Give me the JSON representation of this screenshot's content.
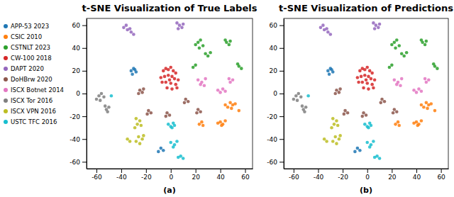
{
  "chart_data": [
    {
      "type": "scatter",
      "title": "t-SNE Visualization of True Labels",
      "x_label": "(a)",
      "xlim": [
        -68,
        66
      ],
      "ylim": [
        -66,
        66
      ],
      "xticks": [
        -60,
        -40,
        -20,
        0,
        20,
        40,
        60
      ],
      "yticks": [
        -60,
        -40,
        -20,
        0,
        20,
        40,
        60
      ],
      "legend": "left",
      "series": [
        {
          "name": "APP-53 2023",
          "color": "#1f77b4",
          "x": [
            -32,
            -30,
            -28,
            -31,
            -29,
            -8,
            -6,
            -10
          ],
          "values": [
            20,
            22,
            19,
            17,
            21,
            -48,
            -50,
            -51
          ]
        },
        {
          "name": "CSIC 2010",
          "color": "#ff7f0e",
          "x": [
            48,
            50,
            46,
            52,
            49,
            44,
            40,
            42,
            38,
            44,
            41,
            23,
            25,
            26,
            55
          ],
          "values": [
            -8,
            -10,
            -12,
            -9,
            -13,
            -10,
            -25,
            -27,
            -26,
            -24,
            -28,
            -27,
            -25,
            -28,
            -15
          ]
        },
        {
          "name": "CSTNLT 2023",
          "color": "#2ca02c",
          "x": [
            22,
            24,
            20,
            23,
            26,
            28,
            30,
            32,
            45,
            47,
            44,
            48,
            55,
            57,
            54,
            20,
            18
          ],
          "values": [
            45,
            47,
            43,
            40,
            42,
            35,
            33,
            36,
            45,
            43,
            47,
            46,
            24,
            22,
            26,
            25,
            23
          ]
        },
        {
          "name": "CW-100 2018",
          "color": "#d62728",
          "x": [
            -6,
            -4,
            -2,
            0,
            2,
            4,
            -5,
            -2,
            1,
            3,
            -7,
            -4,
            0,
            4,
            -3,
            1,
            5,
            -8,
            6,
            -1
          ],
          "values": [
            20,
            22,
            21,
            23,
            20,
            18,
            15,
            16,
            15,
            13,
            10,
            10,
            9,
            8,
            5,
            4,
            5,
            14,
            12,
            12
          ]
        },
        {
          "name": "DAPT 2020",
          "color": "#9467bd",
          "x": [
            -38,
            -35,
            -32,
            -30,
            -36,
            -33,
            5,
            7,
            9,
            6,
            10
          ],
          "values": [
            58,
            56,
            54,
            52,
            60,
            57,
            62,
            60,
            58,
            57,
            61
          ]
        },
        {
          "name": "DoHBrw 2020",
          "color": "#8c564b",
          "x": [
            -25,
            -23,
            -26,
            -22,
            -18,
            -16,
            -19,
            -3,
            -1,
            -4,
            12,
            14,
            11,
            22,
            24,
            21
          ],
          "values": [
            3,
            1,
            0,
            4,
            -15,
            -17,
            -18,
            -17,
            -19,
            -20,
            -5,
            -7,
            -8,
            -14,
            -16,
            -17
          ]
        },
        {
          "name": "ISCX Botnet 2014",
          "color": "#e377c2",
          "x": [
            22,
            25,
            28,
            24,
            27,
            38,
            40,
            42,
            44,
            48,
            50,
            47
          ],
          "values": [
            12,
            10,
            13,
            8,
            7,
            3,
            1,
            4,
            2,
            10,
            12,
            13
          ]
        },
        {
          "name": "ISCX Tor 2016",
          "color": "#7f7f7f",
          "x": [
            -58,
            -56,
            -54,
            -60,
            -57,
            -52,
            -50,
            -53,
            -51
          ],
          "values": [
            -2,
            0,
            -3,
            -5,
            -6,
            -14,
            -12,
            -11,
            -16
          ]
        },
        {
          "name": "ISCX VPN 2016",
          "color": "#bcbd22",
          "x": [
            -28,
            -25,
            -27,
            -24,
            -29,
            -26,
            -23,
            -28,
            -25,
            -22,
            -35,
            -33
          ],
          "values": [
            -22,
            -24,
            -27,
            -28,
            -30,
            -38,
            -40,
            -42,
            -44,
            -37,
            -40,
            -42
          ]
        },
        {
          "name": "USTC TFC 2016",
          "color": "#17becf",
          "x": [
            -2,
            0,
            2,
            1,
            3,
            0,
            3,
            5,
            2,
            8,
            10,
            6,
            -48
          ],
          "values": [
            -27,
            -29,
            -26,
            -30,
            -28,
            -43,
            -45,
            -42,
            -47,
            -55,
            -57,
            -56,
            -2
          ]
        }
      ]
    },
    {
      "type": "scatter",
      "title": "t-SNE Visualization of Predictions",
      "x_label": "(b)",
      "xlim": [
        -68,
        66
      ],
      "ylim": [
        -66,
        66
      ],
      "xticks": [
        -60,
        -40,
        -20,
        0,
        20,
        40,
        60
      ],
      "yticks": [
        -60,
        -40,
        -20,
        0,
        20,
        40,
        60
      ],
      "series": [
        {
          "name": "APP-53 2023",
          "color": "#1f77b4",
          "x": [
            -32,
            -30,
            -28,
            -31,
            -29,
            -8,
            -6,
            -10
          ],
          "values": [
            20,
            22,
            19,
            17,
            21,
            -48,
            -50,
            -51
          ]
        },
        {
          "name": "CSIC 2010",
          "color": "#ff7f0e",
          "x": [
            48,
            50,
            46,
            52,
            49,
            44,
            40,
            42,
            38,
            44,
            41,
            23,
            25,
            26,
            55
          ],
          "values": [
            -8,
            -10,
            -12,
            -9,
            -13,
            -10,
            -25,
            -27,
            -26,
            -24,
            -28,
            -27,
            -25,
            -28,
            -15
          ]
        },
        {
          "name": "CSTNLT 2023",
          "color": "#2ca02c",
          "x": [
            22,
            24,
            20,
            23,
            26,
            28,
            30,
            32,
            45,
            47,
            44,
            48,
            55,
            57,
            54,
            20,
            18
          ],
          "values": [
            45,
            47,
            43,
            40,
            42,
            35,
            33,
            36,
            45,
            43,
            47,
            46,
            24,
            22,
            26,
            25,
            23
          ]
        },
        {
          "name": "CW-100 2018",
          "color": "#d62728",
          "x": [
            -6,
            -4,
            -2,
            0,
            2,
            4,
            -5,
            -2,
            1,
            3,
            -7,
            -4,
            0,
            4,
            -3,
            1,
            5,
            -8,
            6,
            -1
          ],
          "values": [
            20,
            22,
            21,
            23,
            20,
            18,
            15,
            16,
            15,
            13,
            10,
            10,
            9,
            8,
            5,
            4,
            5,
            14,
            12,
            12
          ]
        },
        {
          "name": "DAPT 2020",
          "color": "#9467bd",
          "x": [
            -38,
            -35,
            -32,
            -30,
            -36,
            -33,
            5,
            7,
            9,
            6,
            10
          ],
          "values": [
            58,
            56,
            54,
            52,
            60,
            57,
            62,
            60,
            58,
            57,
            61
          ]
        },
        {
          "name": "DoHBrw 2020",
          "color": "#8c564b",
          "x": [
            -25,
            -23,
            -26,
            -22,
            -18,
            -16,
            -19,
            -3,
            -1,
            -4,
            12,
            14,
            11,
            22,
            24,
            21
          ],
          "values": [
            3,
            1,
            0,
            4,
            -15,
            -17,
            -18,
            -17,
            -19,
            -20,
            -5,
            -7,
            -8,
            -14,
            -16,
            -17
          ]
        },
        {
          "name": "ISCX Botnet 2014",
          "color": "#e377c2",
          "x": [
            22,
            25,
            28,
            24,
            27,
            38,
            40,
            42,
            44,
            48,
            50,
            47
          ],
          "values": [
            12,
            10,
            13,
            8,
            7,
            3,
            1,
            4,
            2,
            10,
            12,
            13
          ]
        },
        {
          "name": "ISCX Tor 2016",
          "color": "#7f7f7f",
          "x": [
            -58,
            -56,
            -54,
            -60,
            -57,
            -52,
            -50,
            -53,
            -51
          ],
          "values": [
            -2,
            0,
            -3,
            -5,
            -6,
            -14,
            -12,
            -11,
            -16
          ]
        },
        {
          "name": "ISCX VPN 2016",
          "color": "#bcbd22",
          "x": [
            -28,
            -25,
            -27,
            -24,
            -29,
            -26,
            -23,
            -28,
            -25,
            -22,
            -35,
            -33
          ],
          "values": [
            -22,
            -24,
            -27,
            -28,
            -30,
            -38,
            -40,
            -42,
            -44,
            -37,
            -40,
            -42
          ]
        },
        {
          "name": "USTC TFC 2016",
          "color": "#17becf",
          "x": [
            -2,
            0,
            2,
            1,
            3,
            0,
            3,
            5,
            2,
            8,
            10,
            6,
            -48
          ],
          "values": [
            -27,
            -29,
            -26,
            -30,
            -28,
            -43,
            -45,
            -42,
            -47,
            -55,
            -57,
            -56,
            -2
          ]
        }
      ]
    }
  ]
}
